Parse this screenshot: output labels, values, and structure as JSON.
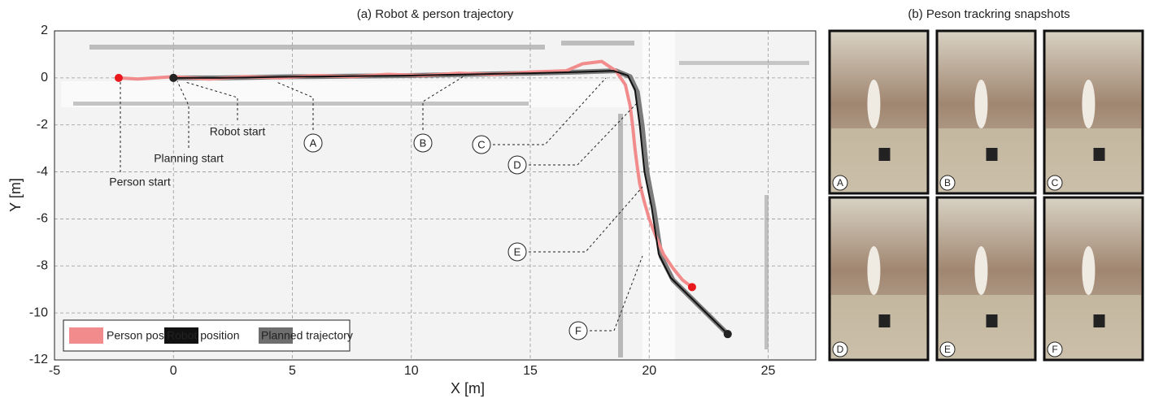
{
  "chart_data": {
    "type": "line",
    "title": "(a) Robot & person trajectory",
    "xlabel": "X [m]",
    "ylabel": "Y [m]",
    "xlim": [
      -5,
      27
    ],
    "ylim": [
      -12,
      2
    ],
    "xticks": [
      -5,
      0,
      5,
      10,
      15,
      20,
      25
    ],
    "yticks": [
      2,
      0,
      -2,
      -4,
      -6,
      -8,
      -10,
      -12
    ],
    "grid": true,
    "series": [
      {
        "name": "Person position",
        "color": "#f28c8c",
        "x": [
          -2.3,
          -1.5,
          0,
          1.5,
          3,
          4.5,
          6,
          7.5,
          9,
          10.5,
          12,
          13.5,
          15,
          16.5,
          17.2,
          18,
          18.6,
          19,
          19.2,
          19.3,
          19.4,
          19.5,
          19.6,
          19.8,
          20,
          20.3,
          20.6,
          21,
          21.4,
          21.8
        ],
        "values": [
          0,
          -0.05,
          0.05,
          -0.05,
          0.05,
          0,
          0.1,
          0.05,
          0.15,
          0.1,
          0.2,
          0.15,
          0.25,
          0.3,
          0.6,
          0.7,
          0.3,
          -0.3,
          -1.2,
          -2,
          -3,
          -3.8,
          -4.5,
          -5.3,
          -6,
          -6.8,
          -7.5,
          -8.1,
          -8.6,
          -8.9
        ]
      },
      {
        "name": "Robot position",
        "color": "#111111",
        "x": [
          0,
          2,
          5,
          10,
          15,
          17,
          18.5,
          19.1,
          19.4,
          19.6,
          19.8,
          20.1,
          20.4,
          20.9,
          22,
          23.3
        ],
        "values": [
          0,
          0,
          0.05,
          0.1,
          0.2,
          0.25,
          0.3,
          0.1,
          -0.5,
          -2,
          -4,
          -5.5,
          -7.5,
          -8.5,
          -9.6,
          -10.9
        ]
      },
      {
        "name": "Planned trajectory",
        "color": "#6e6e6e",
        "x": [
          0,
          2,
          5,
          10,
          15,
          17,
          18.6,
          19.2,
          19.5,
          19.7,
          19.9,
          20.2,
          20.5,
          21,
          22.1,
          23.3
        ],
        "values": [
          0,
          0,
          0.05,
          0.1,
          0.2,
          0.25,
          0.3,
          0.05,
          -0.6,
          -2,
          -4,
          -5.6,
          -7.6,
          -8.6,
          -9.7,
          -10.9
        ]
      }
    ],
    "annotations": [
      "Robot start",
      "Planning start",
      "Person start",
      "A",
      "B",
      "C",
      "D",
      "E",
      "F"
    ]
  },
  "snapshots": {
    "title": "(b) Peson trackring snapshots",
    "labels": [
      "A",
      "B",
      "C",
      "D",
      "E",
      "F"
    ]
  }
}
